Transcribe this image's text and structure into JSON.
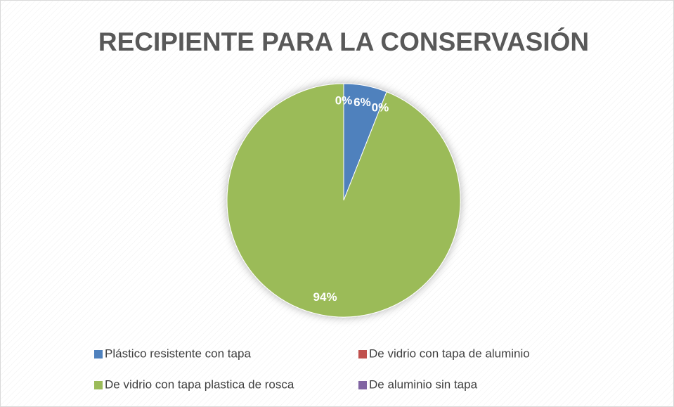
{
  "chart_data": {
    "type": "pie",
    "title": "RECIPIENTE PARA LA CONSERVASIÓN",
    "categories": [
      "Plástico resistente con tapa",
      "De vidrio con tapa de aluminio",
      "De vidrio con tapa plastica de rosca",
      "De aluminio sin tapa"
    ],
    "values": [
      6,
      0,
      94,
      0
    ],
    "value_labels": [
      "6%",
      "0%",
      "94%",
      "0%"
    ],
    "colors": [
      "#4f81bd",
      "#c0504d",
      "#9bbb59",
      "#8064a2"
    ],
    "legend": "bottom"
  }
}
